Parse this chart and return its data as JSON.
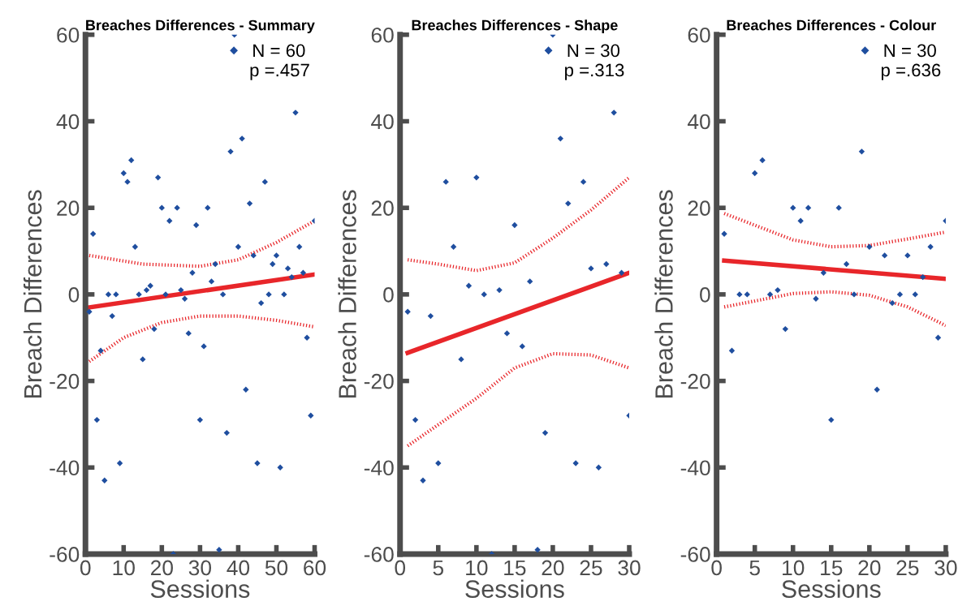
{
  "chart_data": [
    {
      "type": "scatter",
      "title": "Breaches Differences - Summary",
      "xlabel": "Sessions",
      "ylabel": "Breach Differences",
      "xlim": [
        0,
        60
      ],
      "xticks": [
        0,
        10,
        20,
        30,
        40,
        50,
        60
      ],
      "ylim": [
        -60,
        60
      ],
      "yticks": [
        -60,
        -40,
        -20,
        0,
        20,
        40,
        60
      ],
      "grid": false,
      "legend": "top right",
      "annotations": [
        "p =.457"
      ],
      "series": [
        {
          "name": "N = 60",
          "marker": "diamond",
          "color": "#1f4e9f",
          "x": [
            1,
            2,
            3,
            4,
            5,
            6,
            7,
            8,
            9,
            10,
            11,
            12,
            13,
            14,
            15,
            16,
            17,
            18,
            19,
            20,
            21,
            22,
            23,
            24,
            25,
            26,
            27,
            28,
            29,
            30,
            31,
            32,
            33,
            34,
            35,
            36,
            37,
            38,
            39,
            40,
            41,
            42,
            43,
            44,
            45,
            46,
            47,
            48,
            49,
            50,
            51,
            52,
            53,
            54,
            55,
            56,
            57,
            58,
            59,
            60
          ],
          "values": [
            -4,
            14,
            -29,
            -13,
            -43,
            0,
            -5,
            0,
            -39,
            28,
            26,
            31,
            11,
            0,
            -15,
            1,
            2,
            -8,
            27,
            20,
            0,
            17,
            -60,
            20,
            1,
            -1,
            -9,
            5,
            16,
            -29,
            -12,
            20,
            3,
            7,
            -59,
            0,
            -32,
            33,
            60,
            11,
            36,
            -22,
            21,
            9,
            -39,
            -2,
            26,
            0,
            7,
            9,
            -40,
            0,
            6,
            4,
            42,
            11,
            5,
            -10,
            -28,
            17
          ]
        },
        {
          "type": "line",
          "color": "#e8262a",
          "line_style": "solid",
          "x": [
            1,
            60
          ],
          "values": [
            -3,
            4.6
          ]
        },
        {
          "type": "line",
          "color": "#e8262a",
          "line_style": "dotted",
          "x": [
            1,
            15,
            30,
            40,
            50,
            60
          ],
          "values": [
            9,
            7,
            6.5,
            8,
            12,
            17
          ]
        },
        {
          "type": "line",
          "color": "#e8262a",
          "line_style": "dotted",
          "x": [
            1,
            10,
            20,
            30,
            40,
            50,
            60
          ],
          "values": [
            -15.5,
            -10,
            -6.5,
            -5,
            -5,
            -6,
            -7.5
          ]
        }
      ]
    },
    {
      "type": "scatter",
      "title": "Breaches Differences - Shape",
      "xlabel": "Sessions",
      "ylabel": "Breach Differences",
      "xlim": [
        0,
        30
      ],
      "xticks": [
        0,
        5,
        10,
        15,
        20,
        25,
        30
      ],
      "ylim": [
        -60,
        60
      ],
      "yticks": [
        -60,
        -40,
        -20,
        0,
        20,
        40,
        60
      ],
      "grid": false,
      "legend": "top right",
      "annotations": [
        "p =.313"
      ],
      "series": [
        {
          "name": "N = 30",
          "marker": "diamond",
          "color": "#1f4e9f",
          "x": [
            1,
            2,
            3,
            4,
            5,
            6,
            7,
            8,
            9,
            10,
            11,
            12,
            13,
            14,
            15,
            16,
            17,
            18,
            19,
            20,
            21,
            22,
            23,
            24,
            25,
            26,
            27,
            28,
            29,
            30
          ],
          "values": [
            -4,
            -29,
            -43,
            -5,
            -39,
            26,
            11,
            -15,
            2,
            27,
            0,
            -60,
            1,
            -9,
            16,
            -12,
            3,
            -59,
            -32,
            60,
            36,
            21,
            -39,
            26,
            6,
            -40,
            7,
            42,
            5,
            -28
          ]
        },
        {
          "type": "line",
          "color": "#e8262a",
          "line_style": "solid",
          "x": [
            1,
            30
          ],
          "values": [
            -13.5,
            5
          ]
        },
        {
          "type": "line",
          "color": "#e8262a",
          "line_style": "dotted",
          "x": [
            1,
            5,
            10,
            15,
            20,
            25,
            30
          ],
          "values": [
            8,
            7,
            5.5,
            7.3,
            13,
            19.5,
            27
          ]
        },
        {
          "type": "line",
          "color": "#e8262a",
          "line_style": "dotted",
          "x": [
            1,
            10,
            15,
            20,
            25,
            30
          ],
          "values": [
            -35,
            -24,
            -17,
            -13.7,
            -14,
            -17
          ]
        }
      ]
    },
    {
      "type": "scatter",
      "title": "Breaches Differences - Colour",
      "xlabel": "Sessions",
      "ylabel": "Breach Differences",
      "xlim": [
        0,
        30
      ],
      "xticks": [
        0,
        5,
        10,
        15,
        20,
        25,
        30
      ],
      "ylim": [
        -60,
        60
      ],
      "yticks": [
        -60,
        -40,
        -20,
        0,
        20,
        40,
        60
      ],
      "grid": false,
      "legend": "top right",
      "annotations": [
        "p =.636"
      ],
      "series": [
        {
          "name": "N = 30",
          "marker": "diamond",
          "color": "#1f4e9f",
          "x": [
            1,
            2,
            3,
            4,
            5,
            6,
            7,
            8,
            9,
            10,
            11,
            12,
            13,
            14,
            15,
            16,
            17,
            18,
            19,
            20,
            21,
            22,
            23,
            24,
            25,
            26,
            27,
            28,
            29,
            30
          ],
          "values": [
            14,
            -13,
            0,
            0,
            28,
            31,
            0,
            1,
            -8,
            20,
            17,
            20,
            -1,
            5,
            -29,
            20,
            7,
            0,
            33,
            11,
            -22,
            9,
            -2,
            0,
            9,
            0,
            4,
            11,
            -10,
            17
          ]
        },
        {
          "type": "line",
          "color": "#e8262a",
          "line_style": "solid",
          "x": [
            1,
            30
          ],
          "values": [
            7.8,
            3.6
          ]
        },
        {
          "type": "line",
          "color": "#e8262a",
          "line_style": "dotted",
          "x": [
            1,
            10,
            15,
            20,
            25,
            30
          ],
          "values": [
            18.7,
            12.6,
            11,
            11.3,
            12.8,
            14.4
          ]
        },
        {
          "type": "line",
          "color": "#e8262a",
          "line_style": "dotted",
          "x": [
            1,
            10,
            15,
            20,
            25,
            30
          ],
          "values": [
            -2.9,
            0.2,
            0.6,
            -0.2,
            -2.9,
            -7.2
          ]
        }
      ]
    }
  ]
}
